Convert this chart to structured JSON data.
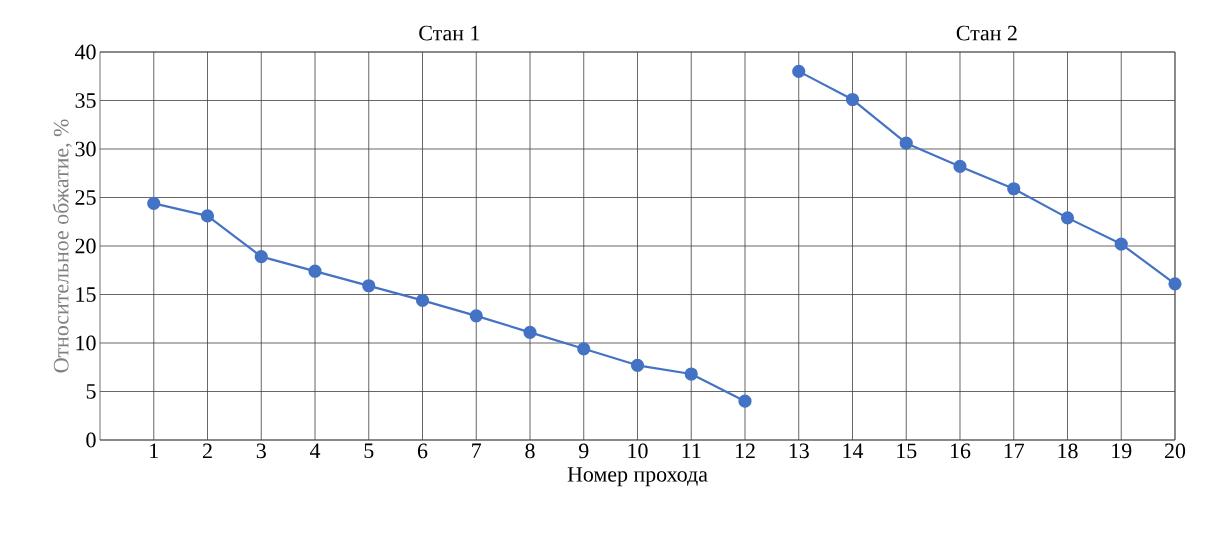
{
  "chart_data": {
    "type": "line",
    "xlabel": "Номер прохода",
    "ylabel": "Относительное обжатие, %",
    "series": [
      {
        "color": "#4472c4",
        "x": [
          1,
          2,
          3,
          4,
          5,
          6,
          7,
          8,
          9,
          10,
          11,
          12
        ],
        "values": [
          24.4,
          23.1,
          18.9,
          17.4,
          15.9,
          14.4,
          12.8,
          11.1,
          9.4,
          7.7,
          6.8,
          4.0
        ]
      },
      {
        "color": "#4472c4",
        "x": [
          13,
          14,
          15,
          16,
          17,
          18,
          19,
          20
        ],
        "values": [
          38.0,
          35.1,
          30.6,
          28.2,
          25.9,
          22.9,
          20.2,
          16.1
        ]
      }
    ],
    "xlim": [
      0,
      20
    ],
    "xticks": [
      1,
      2,
      3,
      4,
      5,
      6,
      7,
      8,
      9,
      10,
      11,
      12,
      13,
      14,
      15,
      16,
      17,
      18,
      19,
      20
    ],
    "ylim": [
      0,
      40
    ],
    "yticks": [
      0,
      5,
      10,
      15,
      20,
      25,
      30,
      35,
      40
    ],
    "annotations": [
      "Стан 1",
      "Стан 2"
    ],
    "grid": true,
    "marker": "circle",
    "line_style": "solid",
    "legend": false
  }
}
